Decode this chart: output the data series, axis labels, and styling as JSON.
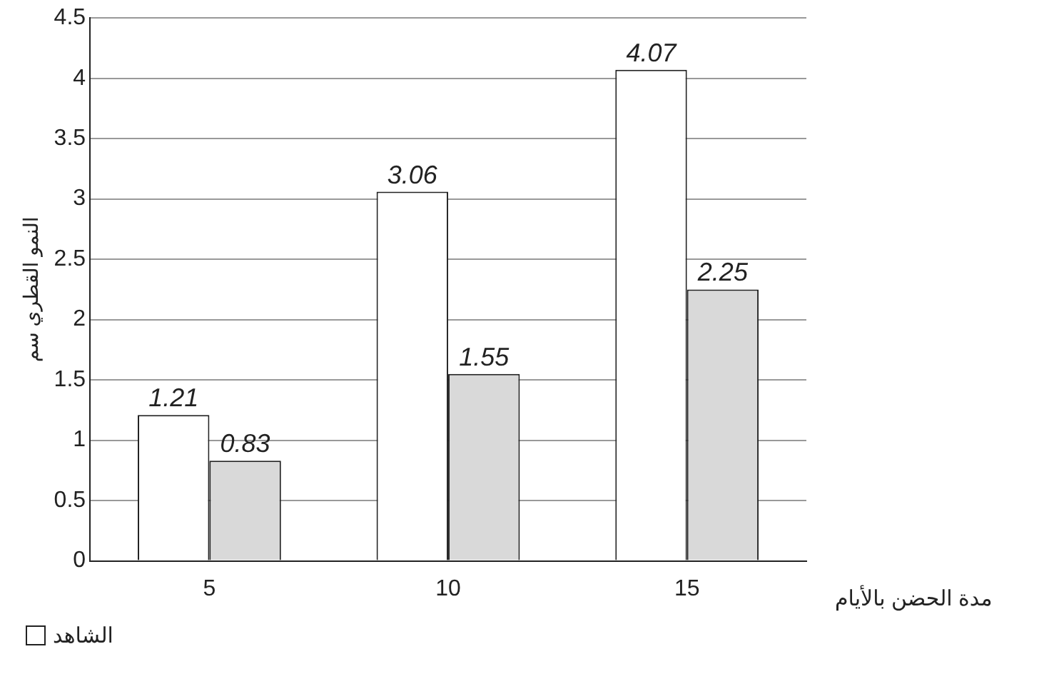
{
  "chart_data": {
    "type": "bar",
    "xlabel": "مدة الحضن بالأيام",
    "ylabel": "النمو القطري سم",
    "categories": [
      "5",
      "10",
      "15"
    ],
    "series": [
      {
        "name": "الشاهد",
        "color": "#ffffff",
        "values": [
          1.21,
          3.06,
          4.07
        ]
      },
      {
        "color": "#d9d9d9",
        "values": [
          0.83,
          1.55,
          2.25
        ]
      }
    ],
    "ylim": [
      0,
      4.5
    ],
    "yticks": [
      0,
      0.5,
      1,
      1.5,
      2,
      2.5,
      3,
      3.5,
      4,
      4.5
    ],
    "grid": "y",
    "legend": "bottom",
    "data_labels": true
  }
}
